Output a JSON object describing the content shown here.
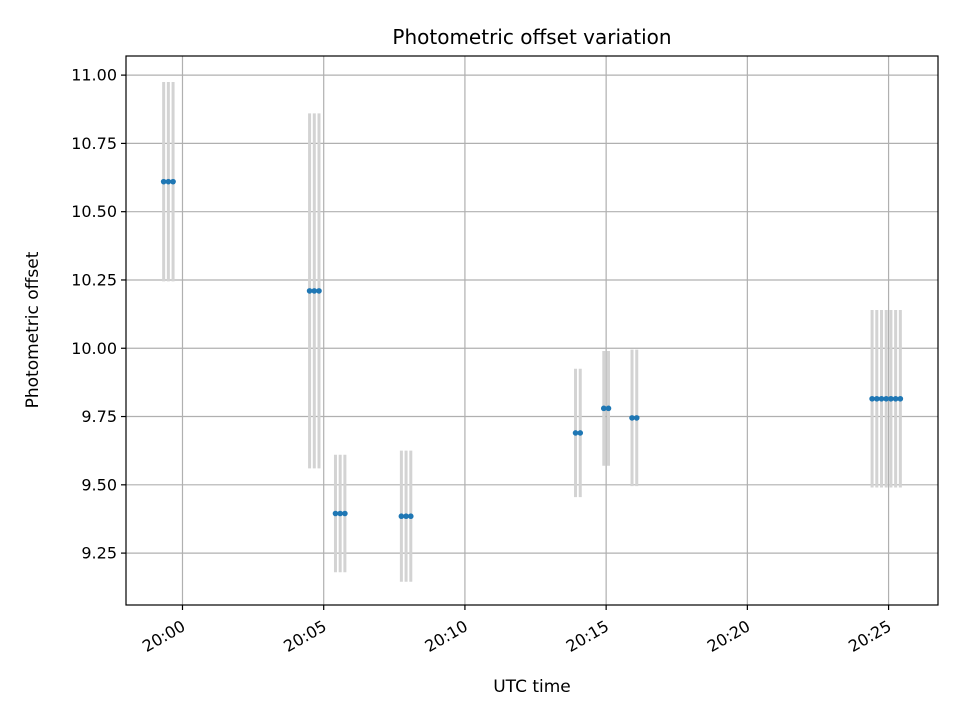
{
  "chart_data": {
    "type": "scatter",
    "title": "Photometric offset variation",
    "xlabel": "UTC time",
    "ylabel": "Photometric offset",
    "x_ticks": [
      "20:00",
      "20:05",
      "20:10",
      "20:15",
      "20:20",
      "20:25"
    ],
    "y_ticks": [
      "9.25",
      "9.50",
      "9.75",
      "10.00",
      "10.25",
      "10.50",
      "10.75",
      "11.00"
    ],
    "xlim": [
      "19:58:00",
      "20:26:45"
    ],
    "ylim": [
      9.06,
      11.07
    ],
    "grid": true,
    "colors": {
      "point": "#1f77b4",
      "errorbar": "#d3d3d3",
      "grid": "#b0b0b0"
    },
    "groups": [
      {
        "times": [
          "19:59:20",
          "19:59:30",
          "19:59:40"
        ],
        "y": 10.61,
        "err": 0.365
      },
      {
        "times": [
          "20:04:30",
          "20:04:40",
          "20:04:50"
        ],
        "y": 10.21,
        "err": 0.65
      },
      {
        "times": [
          "20:05:25",
          "20:05:35",
          "20:05:45"
        ],
        "y": 9.395,
        "err": 0.215
      },
      {
        "times": [
          "20:07:45",
          "20:07:55",
          "20:08:05"
        ],
        "y": 9.385,
        "err": 0.24
      },
      {
        "times": [
          "20:13:55",
          "20:14:05"
        ],
        "y": 9.69,
        "err": 0.235
      },
      {
        "times": [
          "20:14:55",
          "20:15:05"
        ],
        "y": 9.78,
        "err": 0.21
      },
      {
        "times": [
          "20:15:55",
          "20:16:05"
        ],
        "y": 9.745,
        "err": 0.25
      },
      {
        "times": [
          "20:24:25",
          "20:24:35",
          "20:24:45",
          "20:24:55",
          "20:25:05",
          "20:25:15",
          "20:25:25"
        ],
        "y": 9.815,
        "err": 0.325
      }
    ]
  }
}
